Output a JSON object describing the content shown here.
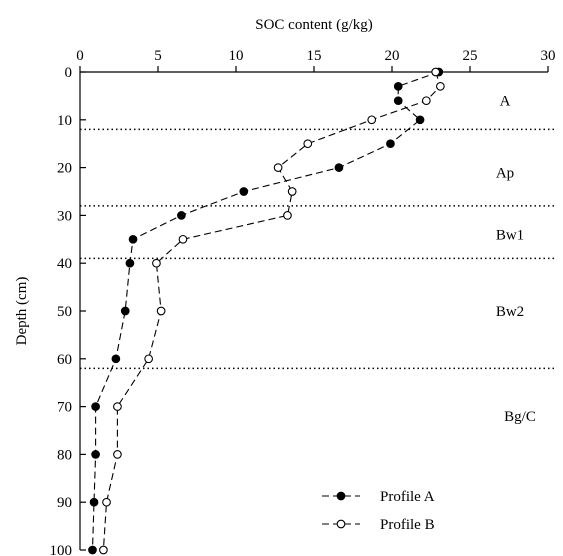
{
  "chart_data": {
    "type": "line",
    "orientation": "depth-profile",
    "xlabel": "SOC content (g/kg)",
    "ylabel": "Depth (cm)",
    "xlim": [
      0,
      30
    ],
    "ylim": [
      0,
      100
    ],
    "y_inverted": true,
    "x_axis_position": "top",
    "x_ticks": [
      0,
      5,
      10,
      15,
      20,
      25,
      30
    ],
    "y_ticks": [
      0,
      10,
      20,
      30,
      40,
      50,
      60,
      70,
      80,
      90,
      100
    ],
    "grid": false,
    "legend_position": "bottom-right",
    "series": [
      {
        "name": "Profile A",
        "marker": "filled-circle",
        "points": [
          {
            "soc": 23.0,
            "depth": 0
          },
          {
            "soc": 20.4,
            "depth": 3
          },
          {
            "soc": 20.4,
            "depth": 6
          },
          {
            "soc": 21.8,
            "depth": 10
          },
          {
            "soc": 19.9,
            "depth": 15
          },
          {
            "soc": 16.6,
            "depth": 20
          },
          {
            "soc": 10.5,
            "depth": 25
          },
          {
            "soc": 6.5,
            "depth": 30
          },
          {
            "soc": 3.4,
            "depth": 35
          },
          {
            "soc": 3.2,
            "depth": 40
          },
          {
            "soc": 2.9,
            "depth": 50
          },
          {
            "soc": 2.3,
            "depth": 60
          },
          {
            "soc": 1.0,
            "depth": 70
          },
          {
            "soc": 1.0,
            "depth": 80
          },
          {
            "soc": 0.9,
            "depth": 90
          },
          {
            "soc": 0.8,
            "depth": 100
          }
        ]
      },
      {
        "name": "Profile B",
        "marker": "open-circle",
        "points": [
          {
            "soc": 22.8,
            "depth": 0
          },
          {
            "soc": 23.1,
            "depth": 3
          },
          {
            "soc": 22.2,
            "depth": 6
          },
          {
            "soc": 18.7,
            "depth": 10
          },
          {
            "soc": 14.6,
            "depth": 15
          },
          {
            "soc": 12.7,
            "depth": 20
          },
          {
            "soc": 13.6,
            "depth": 25
          },
          {
            "soc": 13.3,
            "depth": 30
          },
          {
            "soc": 6.6,
            "depth": 35
          },
          {
            "soc": 4.9,
            "depth": 40
          },
          {
            "soc": 5.2,
            "depth": 50
          },
          {
            "soc": 4.4,
            "depth": 60
          },
          {
            "soc": 2.4,
            "depth": 70
          },
          {
            "soc": 2.4,
            "depth": 80
          },
          {
            "soc": 1.7,
            "depth": 90
          },
          {
            "soc": 1.5,
            "depth": 100
          }
        ]
      }
    ],
    "horizons": [
      {
        "label": "A",
        "bottom_depth": 12,
        "label_depth": 6
      },
      {
        "label": "Ap",
        "bottom_depth": 28,
        "label_depth": 21
      },
      {
        "label": "Bw1",
        "bottom_depth": 39,
        "label_depth": 34
      },
      {
        "label": "Bw2",
        "bottom_depth": 62,
        "label_depth": 50
      },
      {
        "label": "Bg/C",
        "bottom_depth": null,
        "label_depth": 72
      }
    ]
  }
}
